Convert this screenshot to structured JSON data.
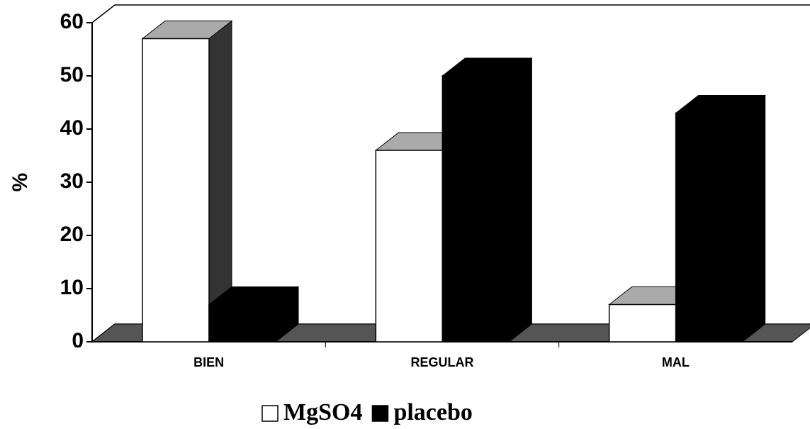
{
  "chart_data": {
    "type": "bar3d",
    "ylabel": "%",
    "categories": [
      "BIEN",
      "REGULAR",
      "MAL"
    ],
    "series": [
      {
        "name": "MgSO4",
        "color": "#ffffff",
        "values": [
          57,
          36,
          7
        ]
      },
      {
        "name": "placebo",
        "color": "#000000",
        "values": [
          7,
          50,
          43
        ]
      }
    ],
    "ylim": [
      0,
      60
    ],
    "yticks": [
      0,
      10,
      20,
      30,
      40,
      50,
      60
    ],
    "legend": "bottom"
  }
}
